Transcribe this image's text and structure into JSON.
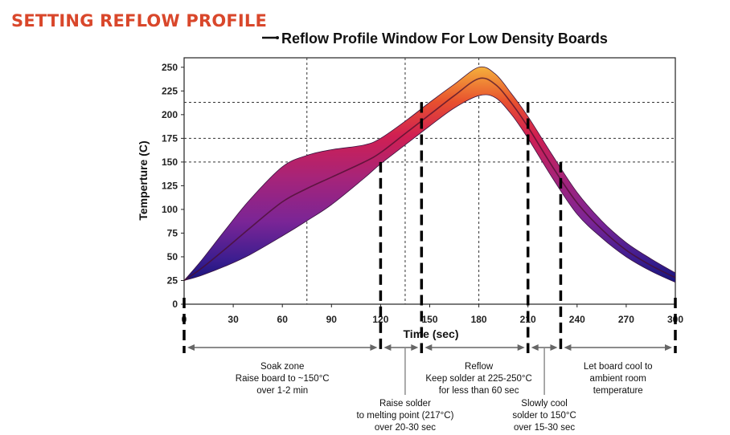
{
  "page": {
    "heading": "SETTING REFLOW PROFILE"
  },
  "colors": {
    "heading": "#d9472b",
    "band_hot": "#f2a33a",
    "band_mid": "#d1244a",
    "band_cool": "#7b2a96",
    "band_cold": "#1a1a8a",
    "guide": "#000000"
  },
  "chart_data": {
    "type": "area",
    "title": "Reflow Profile Window For Low Density Boards",
    "xlabel": "Time (sec)",
    "ylabel": "Temperture (C)",
    "xlim": [
      0,
      300
    ],
    "ylim": [
      0,
      260
    ],
    "x_ticks": [
      "0",
      "30",
      "60",
      "90",
      "120",
      "150",
      "180",
      "210",
      "240",
      "270",
      "300"
    ],
    "y_ticks": [
      "0",
      "25",
      "50",
      "75",
      "100",
      "125",
      "150",
      "175",
      "200",
      "225",
      "250"
    ],
    "grid": "dashed reference lines only",
    "legend": "top-left, line marker",
    "upper_bound": {
      "x": [
        0,
        10,
        25,
        40,
        60,
        75,
        90,
        110,
        120,
        135,
        150,
        165,
        180,
        190,
        200,
        210,
        225,
        240,
        255,
        270,
        285,
        300
      ],
      "y": [
        25,
        45,
        78,
        110,
        145,
        157,
        163,
        168,
        175,
        193,
        213,
        232,
        250,
        243,
        222,
        198,
        157,
        118,
        88,
        65,
        48,
        33
      ]
    },
    "lower_bound": {
      "x": [
        0,
        10,
        25,
        40,
        60,
        75,
        90,
        110,
        120,
        135,
        150,
        165,
        180,
        190,
        200,
        210,
        225,
        240,
        255,
        270,
        285,
        300
      ],
      "y": [
        25,
        30,
        40,
        52,
        72,
        88,
        105,
        133,
        148,
        168,
        188,
        207,
        220,
        218,
        200,
        175,
        133,
        95,
        70,
        50,
        35,
        23
      ]
    },
    "center_line": {
      "x": [
        0,
        10,
        25,
        40,
        60,
        75,
        90,
        110,
        120,
        135,
        150,
        165,
        180,
        190,
        200,
        210,
        225,
        240,
        255,
        270,
        285,
        300
      ],
      "y": [
        25,
        37,
        58,
        80,
        108,
        122,
        134,
        150,
        160,
        180,
        200,
        220,
        238,
        232,
        212,
        187,
        145,
        107,
        79,
        57,
        41,
        28
      ]
    },
    "reference_x": [
      75,
      135,
      180
    ],
    "reference_y": [
      150,
      175,
      213
    ],
    "zone_boundaries_x": [
      0,
      120,
      145,
      210,
      230,
      300
    ],
    "legend_label": "Reflow Profile Window For Low Density Boards",
    "zones": [
      {
        "label_lines": [
          "Soak zone",
          "Raise board to ~150°C",
          "over 1-2 min"
        ]
      },
      {
        "label_lines": [
          "Raise solder",
          "to melting point (217°C)",
          "over 20-30 sec"
        ]
      },
      {
        "label_lines": [
          "Reflow",
          "Keep solder at 225-250°C",
          "for less than 60 sec"
        ]
      },
      {
        "label_lines": [
          "Slowly cool",
          "solder to 150°C",
          "over 15-30 sec"
        ]
      },
      {
        "label_lines": [
          "Let board cool to",
          "ambient room",
          "temperature"
        ]
      }
    ]
  }
}
